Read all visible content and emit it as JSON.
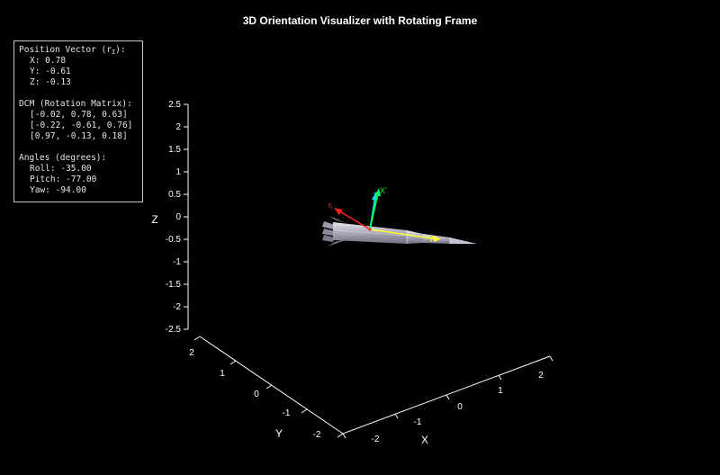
{
  "title": "3D Orientation Visualizer with Rotating Frame",
  "info": {
    "position_header_prefix": "Position Vector (r",
    "position_header_sub": "I",
    "position_header_suffix": "):",
    "x": "X: 0.78",
    "y": "Y: -0.61",
    "z": "Z: -0.13",
    "dcm_header": "DCM (Rotation Matrix):",
    "dcm_rows": [
      "[-0.02, 0.78, 0.63]",
      "[-0.22, -0.61, 0.76]",
      "[0.97, -0.13, 0.18]"
    ],
    "angles_header": "Angles (degrees):",
    "roll": "Roll: -35.00",
    "pitch": "Pitch: -77.00",
    "yaw": "Yaw: -94.00"
  },
  "axes": {
    "z_label": "Z",
    "x_label": "X",
    "y_label": "Y",
    "z_ticks": [
      "2.5",
      "2",
      "1.5",
      "1",
      "0.5",
      "0",
      "-0.5",
      "-1",
      "-1.5",
      "-2",
      "-2.5"
    ],
    "x_ticks": [
      "-2",
      "-1",
      "0",
      "1",
      "2"
    ],
    "y_ticks": [
      "2",
      "1",
      "0",
      "-1",
      "-2"
    ]
  },
  "frame_labels": {
    "x": "X'",
    "y": "Y'",
    "z": "Z'"
  },
  "colors": {
    "background": "#000000",
    "x_axis": "#00ff44",
    "y_axis": "#ffff33",
    "z_axis": "#00e5ff",
    "r_vector": "#ff2020",
    "rocket_body": "#b9b9c8"
  }
}
